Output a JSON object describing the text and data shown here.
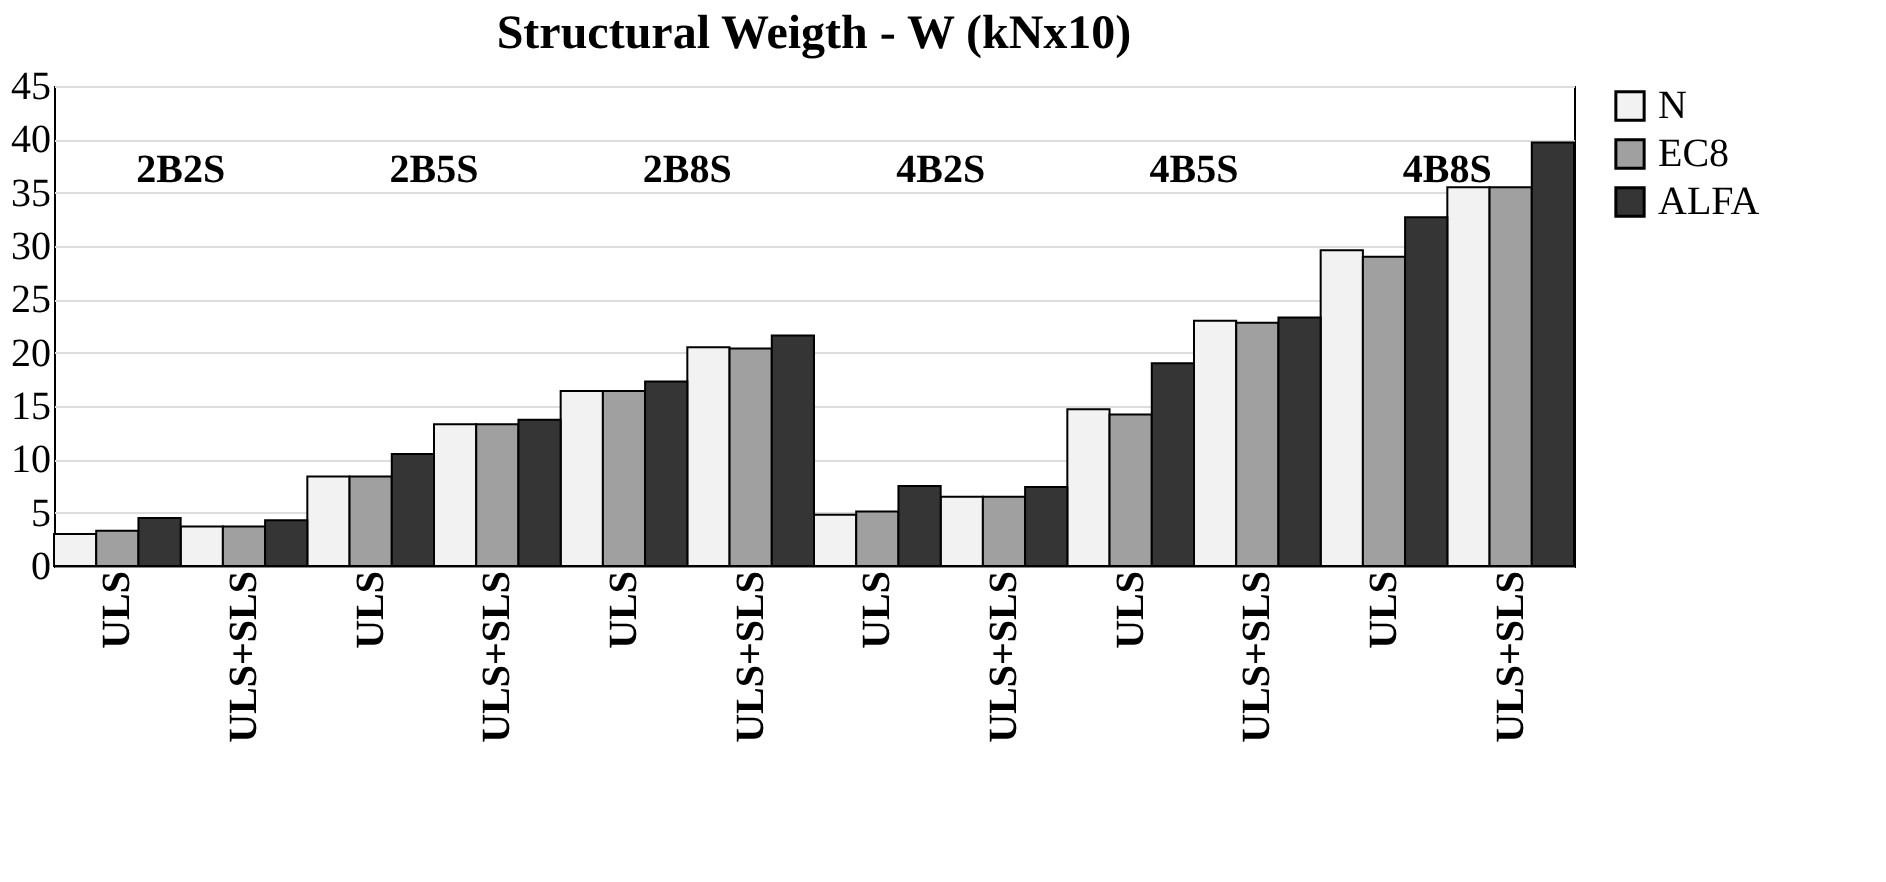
{
  "chart_data": {
    "type": "bar",
    "title": "Structural Weigth - W   (kNx10)",
    "categories": [
      "ULS",
      "ULS+SLS",
      "ULS",
      "ULS+SLS",
      "ULS",
      "ULS+SLS",
      "ULS",
      "ULS+SLS",
      "ULS",
      "ULS+SLS",
      "ULS",
      "ULS+SLS"
    ],
    "series": [
      {
        "name": "N",
        "color": "#f2f2f2",
        "values": [
          3.0,
          3.7,
          8.4,
          13.3,
          16.4,
          20.5,
          4.8,
          6.5,
          14.7,
          23.0,
          29.6,
          35.5
        ]
      },
      {
        "name": "EC8",
        "color": "#a0a0a0",
        "values": [
          3.3,
          3.7,
          8.4,
          13.3,
          16.4,
          20.4,
          5.1,
          6.5,
          14.2,
          22.8,
          29.0,
          35.5
        ]
      },
      {
        "name": "ALFA",
        "color": "#353535",
        "values": [
          4.5,
          4.3,
          10.5,
          13.7,
          17.3,
          21.6,
          7.5,
          7.4,
          19.0,
          23.3,
          32.7,
          39.7
        ]
      }
    ],
    "annotations": [
      "2B2S",
      "2B5S",
      "2B8S",
      "4B2S",
      "4B5S",
      "4B8S"
    ],
    "ylim": [
      0,
      45
    ],
    "yticks": [
      0,
      5,
      10,
      15,
      20,
      25,
      30,
      35,
      40,
      45
    ],
    "grid": "y",
    "legend": "right"
  }
}
